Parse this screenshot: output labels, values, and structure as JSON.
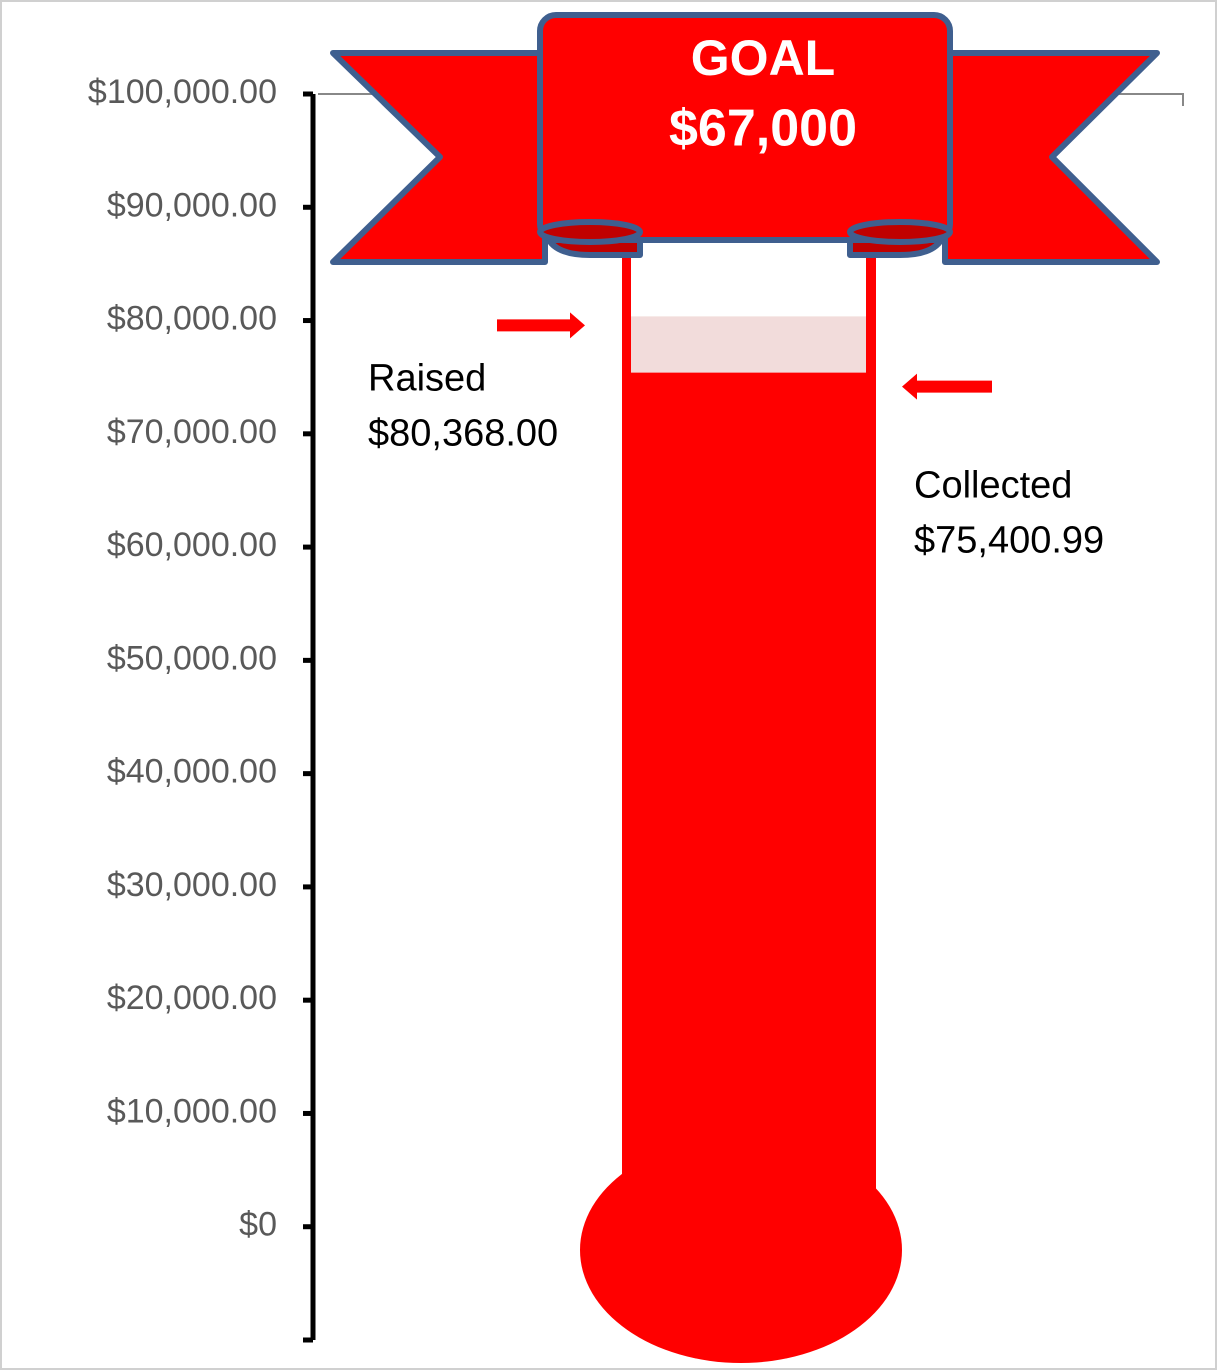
{
  "chart_data": {
    "type": "thermometer",
    "goal": {
      "text": "GOAL",
      "value": 67000,
      "label": "$67,000"
    },
    "series": [
      {
        "name": "Raised",
        "color": "#f2dcdb",
        "values": [
          80368
        ],
        "value_labels": [
          "$80,368.00"
        ]
      },
      {
        "name": "Collected",
        "color": "#ff0000",
        "values": [
          75400.99
        ],
        "value_labels": [
          "$75,400.99"
        ]
      }
    ],
    "ylim": [
      -10000,
      100000
    ],
    "yticks": [
      {
        "value": 0,
        "label": "$0"
      },
      {
        "value": 10000,
        "label": "$10,000.00"
      },
      {
        "value": 20000,
        "label": "$20,000.00"
      },
      {
        "value": 30000,
        "label": "$30,000.00"
      },
      {
        "value": 40000,
        "label": "$40,000.00"
      },
      {
        "value": 50000,
        "label": "$50,000.00"
      },
      {
        "value": 60000,
        "label": "$60,000.00"
      },
      {
        "value": 70000,
        "label": "$70,000.00"
      },
      {
        "value": 80000,
        "label": "$80,000.00"
      },
      {
        "value": 90000,
        "label": "$90,000.00"
      },
      {
        "value": 100000,
        "label": "$100,000.00"
      }
    ]
  }
}
